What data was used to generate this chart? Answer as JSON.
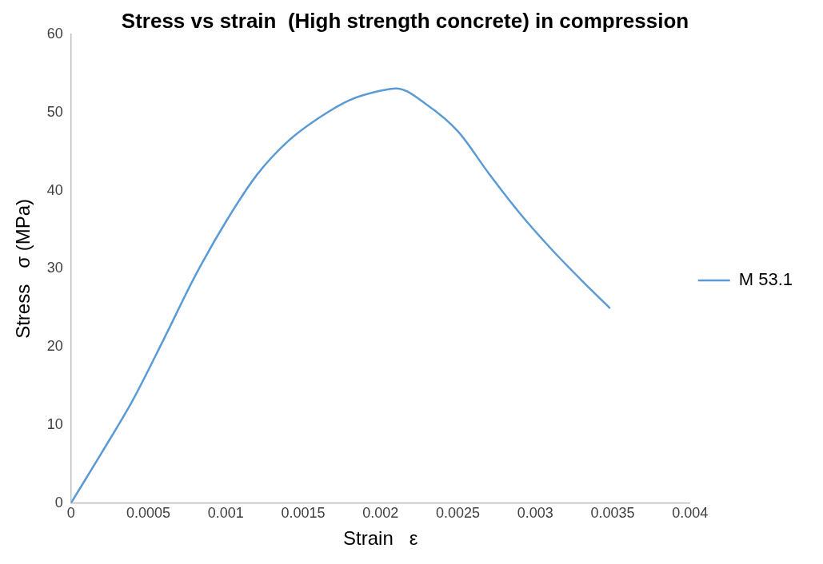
{
  "chart_data": {
    "type": "line",
    "title": "Stress vs strain  (High strength concrete) in compression",
    "xlabel": "Strain   ε",
    "ylabel": "Stress   σ (MPa)",
    "x": [
      0,
      0.0002,
      0.0004,
      0.0006,
      0.0008,
      0.001,
      0.0012,
      0.0014,
      0.0016,
      0.0018,
      0.002,
      0.0021,
      0.0023,
      0.0025,
      0.0027,
      0.0029,
      0.0031,
      0.0033,
      0.00348
    ],
    "series": [
      {
        "name": "M 53.1",
        "color": "#5b9bd5",
        "values": [
          0,
          6.5,
          13.2,
          21,
          29,
          36,
          42,
          46.3,
          49.3,
          51.6,
          52.8,
          53.1,
          51,
          47.6,
          42.2,
          37.1,
          32.6,
          28.5,
          25
        ]
      }
    ],
    "xlim": [
      0,
      0.004
    ],
    "xticks": [
      0,
      0.0005,
      0.001,
      0.0015,
      0.002,
      0.0025,
      0.003,
      0.0035,
      0.004
    ],
    "ylim": [
      0,
      60
    ],
    "yticks": [
      0,
      10,
      20,
      30,
      40,
      50,
      60
    ],
    "grid": false,
    "legend": "right",
    "marker": "none",
    "line_style": "solid"
  }
}
